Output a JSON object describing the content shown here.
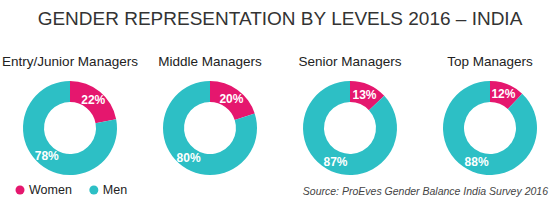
{
  "title": "GENDER REPRESENTATION BY LEVELS 2016 – INDIA",
  "source": "Source: ProEves Gender Balance India Survey 2016",
  "chart_data": [
    {
      "type": "donut",
      "title": "Entry/Junior Managers",
      "categories": [
        "Women",
        "Men"
      ],
      "values": [
        22,
        78
      ],
      "value_labels": [
        "22%",
        "78%"
      ],
      "colors": [
        "#e5176e",
        "#2dbfc5"
      ],
      "data_labels": true,
      "legend": "bottom-left"
    },
    {
      "type": "donut",
      "title": "Middle Managers",
      "categories": [
        "Women",
        "Men"
      ],
      "values": [
        20,
        80
      ],
      "value_labels": [
        "20%",
        "80%"
      ],
      "colors": [
        "#e5176e",
        "#2dbfc5"
      ],
      "data_labels": true
    },
    {
      "type": "donut",
      "title": "Senior Managers",
      "categories": [
        "Women",
        "Men"
      ],
      "values": [
        13,
        87
      ],
      "value_labels": [
        "13%",
        "87%"
      ],
      "colors": [
        "#e5176e",
        "#2dbfc5"
      ],
      "data_labels": true
    },
    {
      "type": "donut",
      "title": "Top Managers",
      "categories": [
        "Women",
        "Men"
      ],
      "values": [
        12,
        88
      ],
      "value_labels": [
        "12%",
        "88%"
      ],
      "colors": [
        "#e5176e",
        "#2dbfc5"
      ],
      "data_labels": true
    }
  ]
}
